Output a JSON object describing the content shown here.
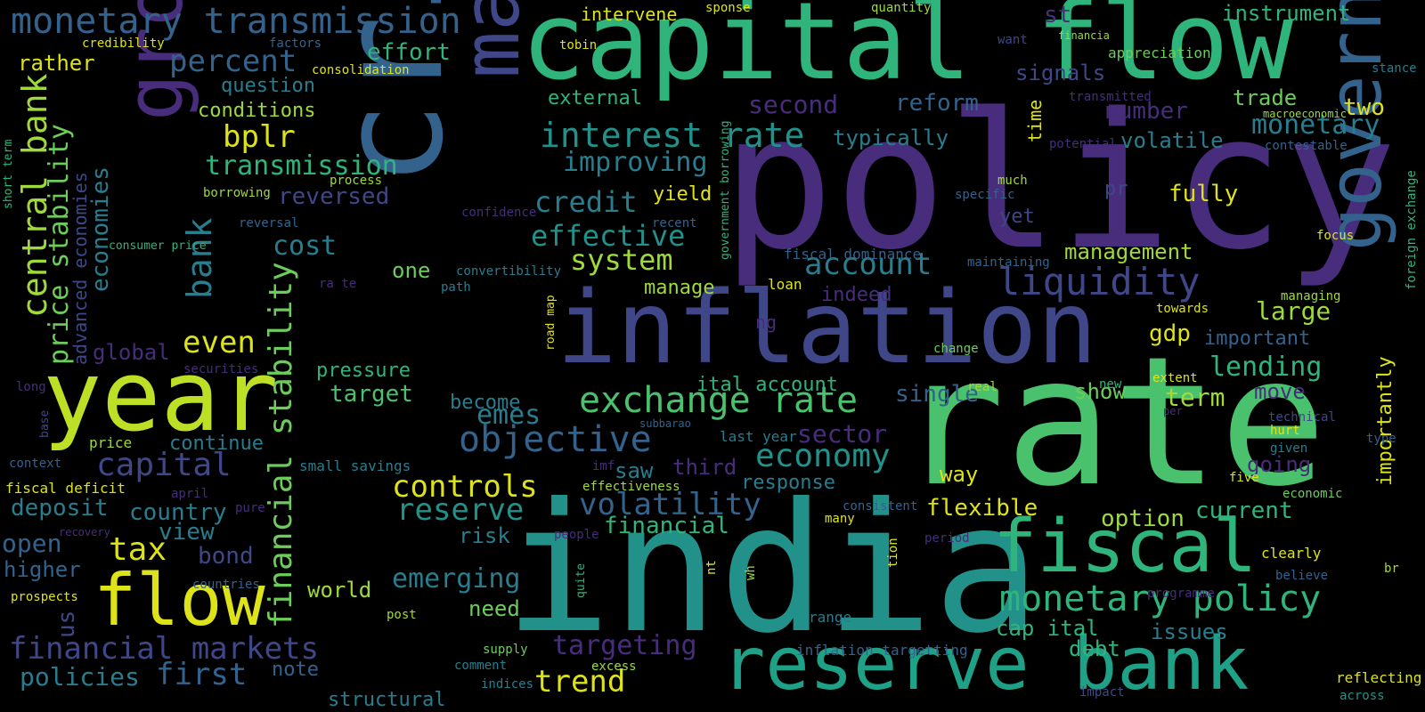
{
  "palette": {
    "yellow": "#dde318",
    "lime": "#9fda3a",
    "green": "#4ac16d",
    "seagreen": "#2fb47c",
    "teal": "#22918a",
    "blueteal": "#287d8e",
    "blue": "#33638d",
    "indigo": "#3f4788",
    "purple": "#472d7b",
    "deep": "#440154",
    "background": "#000000"
  },
  "words": [
    {
      "text": "policy"
    },
    {
      "text": "crisis"
    },
    {
      "text": "india"
    },
    {
      "text": "rate"
    },
    {
      "text": "capital flow"
    },
    {
      "text": "inflation"
    },
    {
      "text": "market"
    },
    {
      "text": "year"
    },
    {
      "text": "reserve bank"
    },
    {
      "text": "growth"
    },
    {
      "text": "government"
    },
    {
      "text": "fiscal"
    },
    {
      "text": "flow"
    },
    {
      "text": "monetary transmission"
    },
    {
      "text": "exchange rate"
    },
    {
      "text": "interest rate"
    },
    {
      "text": "monetary policy"
    },
    {
      "text": "central bank"
    },
    {
      "text": "objective"
    },
    {
      "text": "financial stability"
    },
    {
      "text": "price stability"
    },
    {
      "text": "liquidity"
    },
    {
      "text": "economy"
    },
    {
      "text": "bank"
    },
    {
      "text": "financial markets"
    },
    {
      "text": "account"
    },
    {
      "text": "capital"
    },
    {
      "text": "percent"
    },
    {
      "text": "transmission"
    },
    {
      "text": "controls"
    },
    {
      "text": "reserve"
    },
    {
      "text": "volatility"
    },
    {
      "text": "system"
    },
    {
      "text": "effective"
    },
    {
      "text": "improving"
    },
    {
      "text": "credit"
    },
    {
      "text": "emerging"
    },
    {
      "text": "trend"
    },
    {
      "text": "targeting"
    },
    {
      "text": "tax"
    },
    {
      "text": "even"
    },
    {
      "text": "bplr"
    },
    {
      "text": "emes"
    },
    {
      "text": "first"
    },
    {
      "text": "lending"
    },
    {
      "text": "monetary"
    },
    {
      "text": "sector"
    },
    {
      "text": "cost"
    },
    {
      "text": "policies"
    },
    {
      "text": "country"
    },
    {
      "text": "open"
    },
    {
      "text": "deposit"
    },
    {
      "text": "large"
    },
    {
      "text": "current"
    },
    {
      "text": "management"
    },
    {
      "text": "number"
    },
    {
      "text": "second"
    },
    {
      "text": "reversed"
    },
    {
      "text": "instrument"
    },
    {
      "text": "signals"
    },
    {
      "text": "reform"
    },
    {
      "text": "typically"
    },
    {
      "text": "volatile"
    },
    {
      "text": "fully"
    },
    {
      "text": "two"
    },
    {
      "text": "trade"
    },
    {
      "text": "single"
    },
    {
      "text": "term"
    },
    {
      "text": "show"
    },
    {
      "text": "gdp"
    },
    {
      "text": "important"
    },
    {
      "text": "importantly"
    },
    {
      "text": "flexible"
    },
    {
      "text": "option"
    },
    {
      "text": "going"
    },
    {
      "text": "move"
    },
    {
      "text": "issues"
    },
    {
      "text": "debt"
    },
    {
      "text": "cap ital"
    },
    {
      "text": "way"
    },
    {
      "text": "response"
    },
    {
      "text": "third"
    },
    {
      "text": "saw"
    },
    {
      "text": "financial"
    },
    {
      "text": "risk"
    },
    {
      "text": "need"
    },
    {
      "text": "world"
    },
    {
      "text": "bond"
    },
    {
      "text": "view"
    },
    {
      "text": "higher"
    },
    {
      "text": "us"
    },
    {
      "text": "note"
    },
    {
      "text": "structural"
    },
    {
      "text": "global"
    },
    {
      "text": "advanced economies"
    },
    {
      "text": "economies"
    },
    {
      "text": "rather"
    },
    {
      "text": "question"
    },
    {
      "text": "conditions"
    },
    {
      "text": "effort"
    },
    {
      "text": "intervene"
    },
    {
      "text": "external"
    },
    {
      "text": "pressure"
    },
    {
      "text": "target"
    },
    {
      "text": "continue"
    },
    {
      "text": "become"
    },
    {
      "text": "one"
    },
    {
      "text": "ital account"
    },
    {
      "text": "indeed"
    },
    {
      "text": "manage"
    },
    {
      "text": "yield"
    },
    {
      "text": "yet"
    },
    {
      "text": "pr"
    },
    {
      "text": "st"
    },
    {
      "text": "time"
    },
    {
      "text": "ng"
    },
    {
      "text": "credibility"
    },
    {
      "text": "consolidation"
    },
    {
      "text": "factors"
    },
    {
      "text": "tobin"
    },
    {
      "text": "quantity"
    },
    {
      "text": "sponse"
    },
    {
      "text": "want"
    },
    {
      "text": "financia"
    },
    {
      "text": "appreciation"
    },
    {
      "text": "stance"
    },
    {
      "text": "transmitted"
    },
    {
      "text": "macroeconomic"
    },
    {
      "text": "potential"
    },
    {
      "text": "contestable"
    },
    {
      "text": "process"
    },
    {
      "text": "borrowing"
    },
    {
      "text": "short term"
    },
    {
      "text": "consumer price"
    },
    {
      "text": "confidence"
    },
    {
      "text": "recent"
    },
    {
      "text": "reversal"
    },
    {
      "text": "convertibility"
    },
    {
      "text": "path"
    },
    {
      "text": "ra te"
    },
    {
      "text": "securities"
    },
    {
      "text": "long"
    },
    {
      "text": "base"
    },
    {
      "text": "price"
    },
    {
      "text": "context"
    },
    {
      "text": "fiscal deficit"
    },
    {
      "text": "april"
    },
    {
      "text": "pure"
    },
    {
      "text": "small savings"
    },
    {
      "text": "recovery"
    },
    {
      "text": "countries"
    },
    {
      "text": "prospects"
    },
    {
      "text": "post"
    },
    {
      "text": "quite"
    },
    {
      "text": "people"
    },
    {
      "text": "supply"
    },
    {
      "text": "comment"
    },
    {
      "text": "indices"
    },
    {
      "text": "excess"
    },
    {
      "text": "effectiveness"
    },
    {
      "text": "imf"
    },
    {
      "text": "subbarao"
    },
    {
      "text": "last year"
    },
    {
      "text": "nt"
    },
    {
      "text": "wh"
    },
    {
      "text": "road map"
    },
    {
      "text": "government borrowing"
    },
    {
      "text": "specific"
    },
    {
      "text": "much"
    },
    {
      "text": "fiscal dominance"
    },
    {
      "text": "maintaining"
    },
    {
      "text": "loan"
    },
    {
      "text": "change"
    },
    {
      "text": "towards"
    },
    {
      "text": "real"
    },
    {
      "text": "new"
    },
    {
      "text": "extent"
    },
    {
      "text": "per"
    },
    {
      "text": "consistent"
    },
    {
      "text": "many"
    },
    {
      "text": "tion"
    },
    {
      "text": "period"
    },
    {
      "text": "range"
    },
    {
      "text": "inflation targetting"
    },
    {
      "text": "impact"
    },
    {
      "text": "programme"
    },
    {
      "text": "technical"
    },
    {
      "text": "hurt"
    },
    {
      "text": "given"
    },
    {
      "text": "type"
    },
    {
      "text": "five"
    },
    {
      "text": "economic"
    },
    {
      "text": "clearly"
    },
    {
      "text": "believe"
    },
    {
      "text": "br"
    },
    {
      "text": "reflecting"
    },
    {
      "text": "across"
    },
    {
      "text": "focus"
    },
    {
      "text": "managing"
    },
    {
      "text": "foreign exchange"
    }
  ]
}
